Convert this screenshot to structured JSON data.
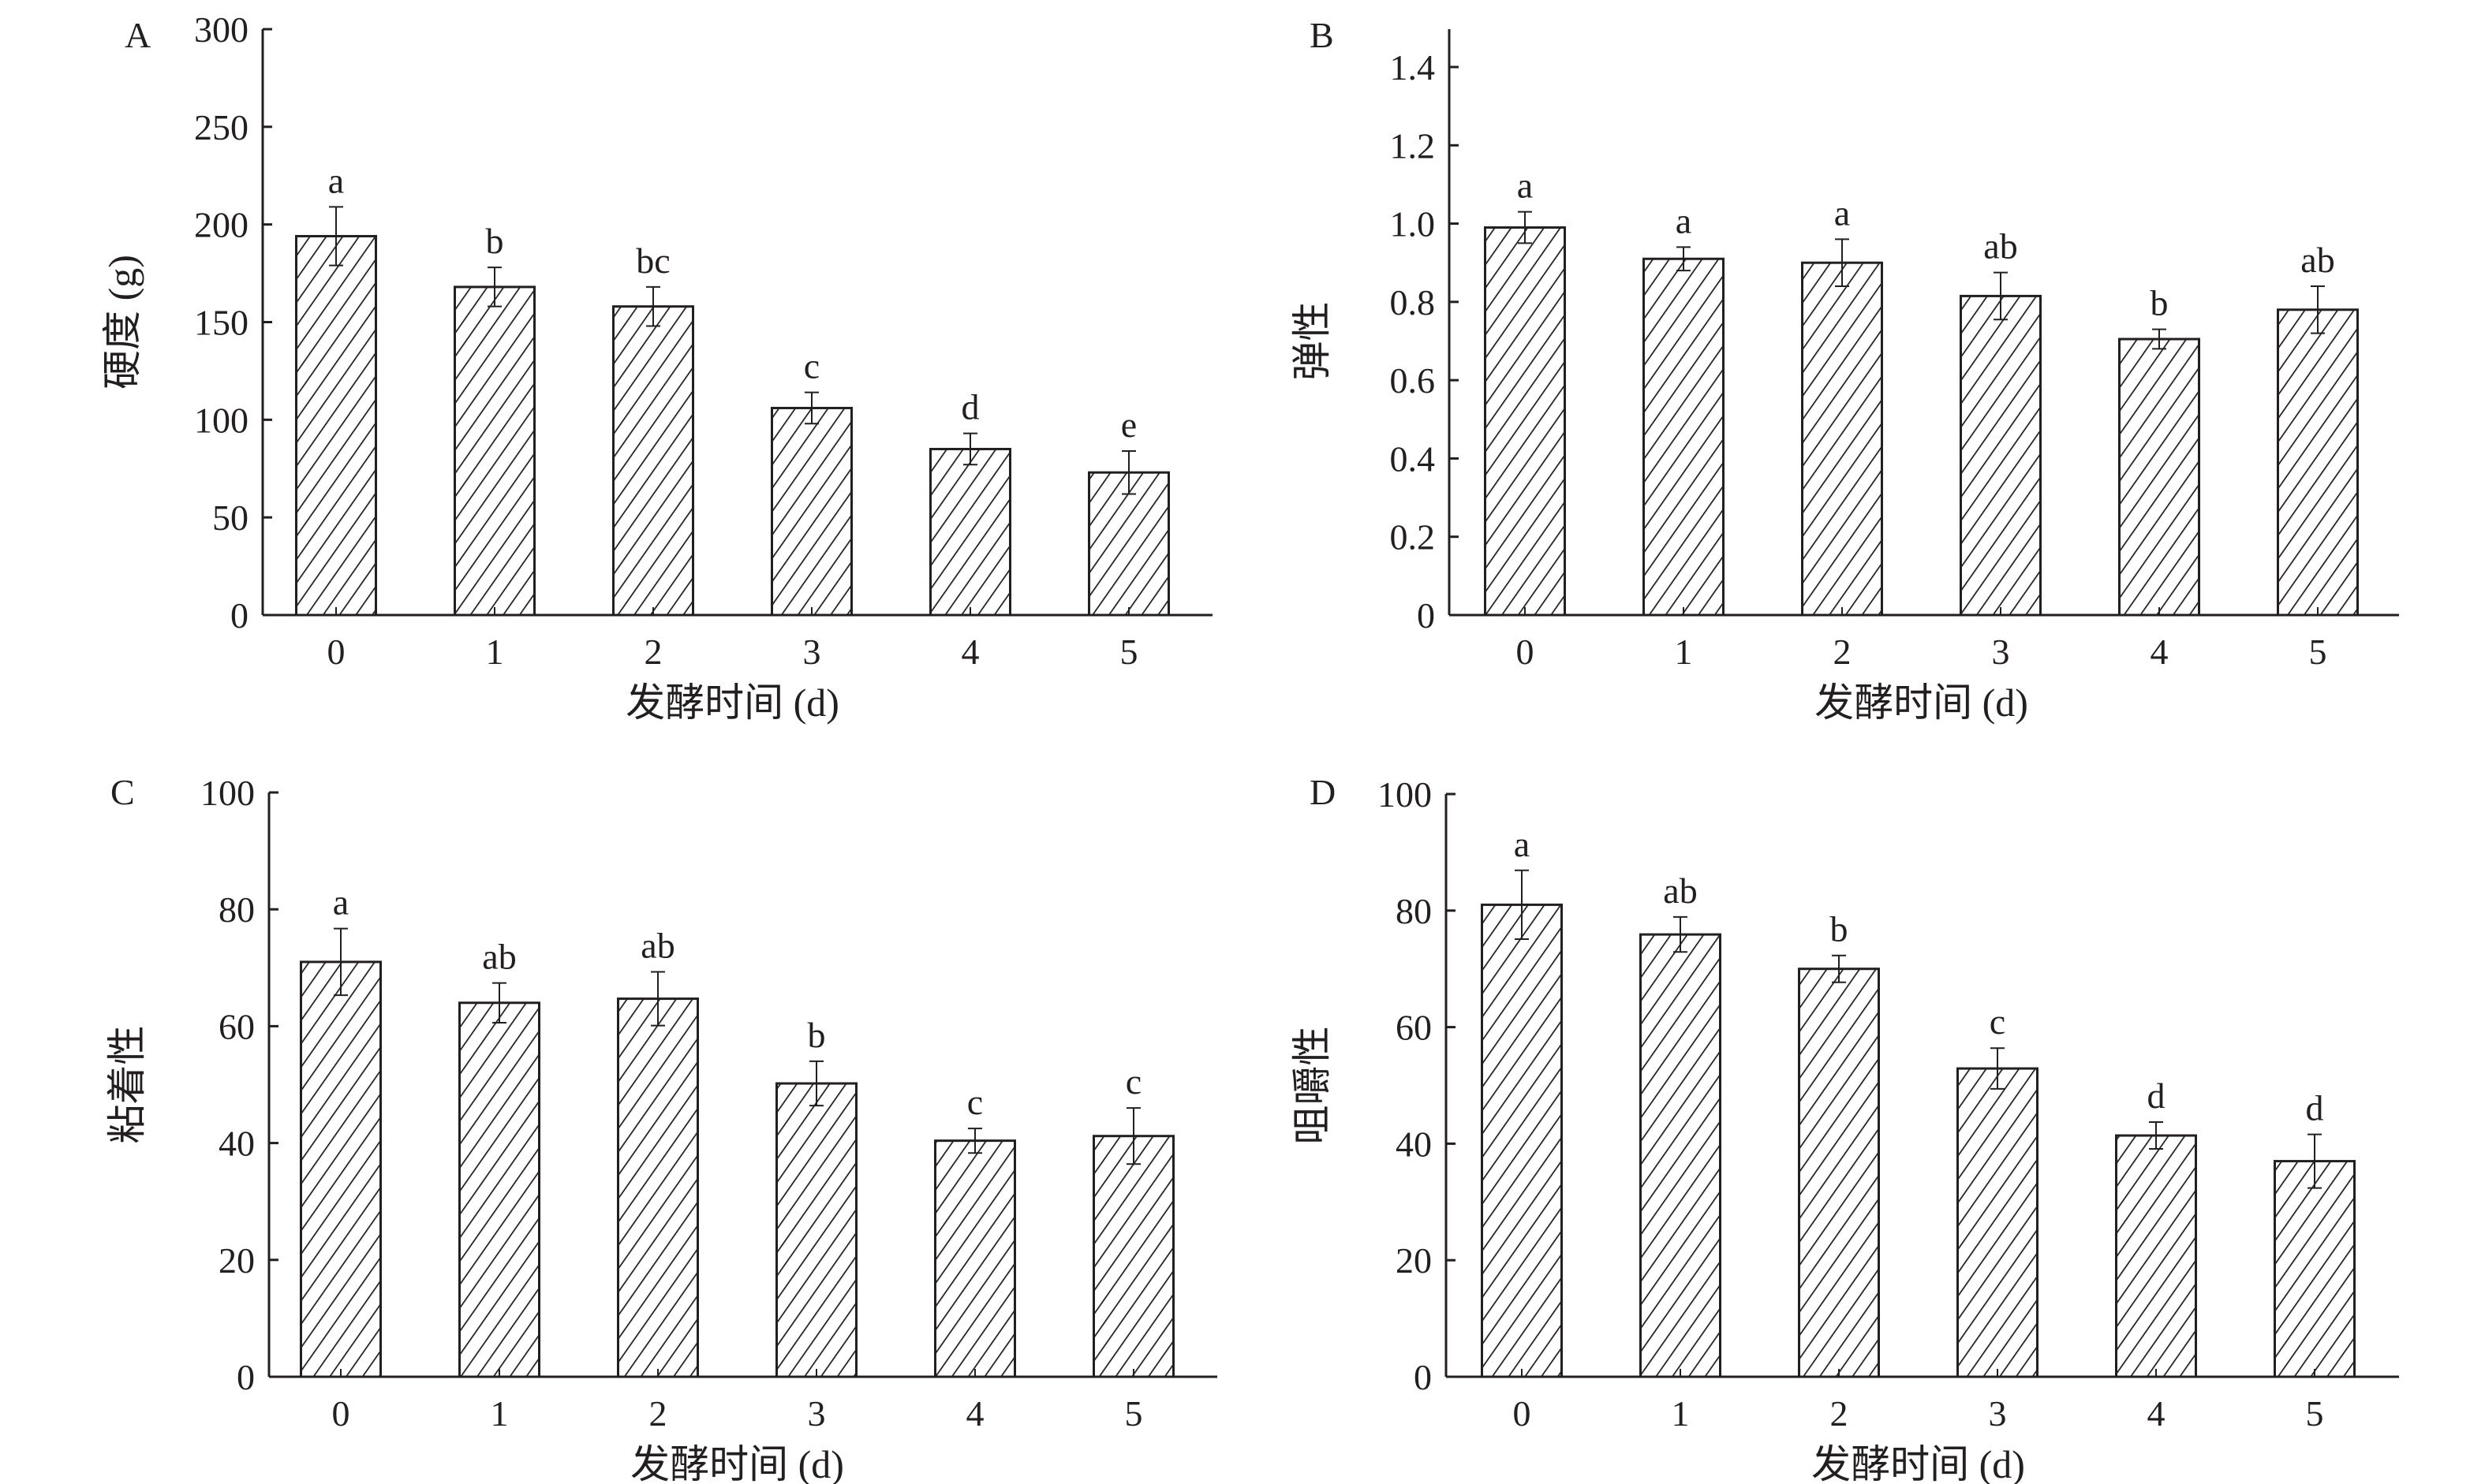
{
  "chart_data": [
    {
      "type": "bar",
      "panel_label": "A",
      "title": "",
      "xlabel": "发酵时间 (d)",
      "ylabel": "硬度 (g)",
      "categories": [
        "0",
        "1",
        "2",
        "3",
        "4",
        "5"
      ],
      "values": [
        194,
        168,
        158,
        106,
        85,
        73
      ],
      "error_upper": [
        209,
        178,
        168,
        114,
        93,
        84
      ],
      "significance_letters": [
        "a",
        "b",
        "bc",
        "c",
        "d",
        "e"
      ],
      "ylim": [
        0,
        300
      ],
      "yticks": [
        "0",
        "50",
        "100",
        "150",
        "200",
        "250",
        "300"
      ],
      "grid": false
    },
    {
      "type": "bar",
      "panel_label": "B",
      "title": "",
      "xlabel": "发酵时间 (d)",
      "ylabel": "弹性",
      "categories": [
        "0",
        "1",
        "2",
        "3",
        "4",
        "5"
      ],
      "values": [
        0.99,
        0.91,
        0.9,
        0.815,
        0.705,
        0.78
      ],
      "error_upper": [
        1.03,
        0.94,
        0.96,
        0.875,
        0.73,
        0.84
      ],
      "significance_letters": [
        "a",
        "a",
        "a",
        "ab",
        "b",
        "ab"
      ],
      "ylim": [
        0,
        1.4
      ],
      "yticks": [
        "0",
        "0.2",
        "0.4",
        "0.6",
        "0.8",
        "1.0",
        "1.2",
        "1.4"
      ],
      "grid": false
    },
    {
      "type": "bar",
      "panel_label": "C",
      "title": "",
      "xlabel": "发酵时间 (d)",
      "ylabel": "粘着性",
      "categories": [
        "0",
        "1",
        "2",
        "3",
        "4",
        "5"
      ],
      "values": [
        71,
        64,
        64.7,
        50.2,
        40.4,
        41.2
      ],
      "error_upper": [
        76.7,
        67.4,
        69.3,
        54,
        42.5,
        46
      ],
      "significance_letters": [
        "a",
        "ab",
        "ab",
        "b",
        "c",
        "c"
      ],
      "ylim": [
        0,
        100
      ],
      "yticks": [
        "0",
        "20",
        "40",
        "60",
        "80",
        "100"
      ],
      "grid": false
    },
    {
      "type": "bar",
      "panel_label": "D",
      "title": "",
      "xlabel": "发酵时间 (d)",
      "ylabel": "咀嚼性",
      "categories": [
        "0",
        "1",
        "2",
        "3",
        "4",
        "5"
      ],
      "values": [
        81,
        75.9,
        70,
        52.9,
        41.4,
        37
      ],
      "error_upper": [
        86.9,
        78.9,
        72.3,
        56.4,
        43.7,
        41.6
      ],
      "significance_letters": [
        "a",
        "ab",
        "b",
        "c",
        "d",
        "d"
      ],
      "ylim": [
        0,
        100
      ],
      "yticks": [
        "0",
        "20",
        "40",
        "60",
        "80",
        "100"
      ],
      "grid": false
    }
  ]
}
